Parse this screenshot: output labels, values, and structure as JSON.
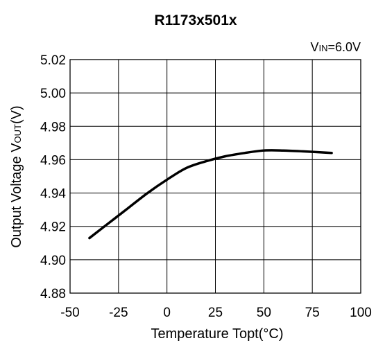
{
  "chart_data": {
    "type": "line",
    "title": "R1173x501x",
    "condition": {
      "main": "V",
      "sub": "IN",
      "rest": "=6.0V"
    },
    "xlabel": "Temperature Topt(°C)",
    "ylabel": {
      "main": "Output Voltage V",
      "sub": "OUT",
      "rest": "(V)"
    },
    "xlim": [
      -50,
      100
    ],
    "ylim": [
      4.88,
      5.02
    ],
    "x_ticks": [
      -50,
      -25,
      0,
      25,
      50,
      75,
      100
    ],
    "y_ticks": [
      4.88,
      4.9,
      4.92,
      4.94,
      4.96,
      4.98,
      5.0,
      5.02
    ],
    "x_tick_labels": [
      "-50",
      "-25",
      "0",
      "25",
      "50",
      "75",
      "100"
    ],
    "y_tick_labels": [
      "4.88",
      "4.90",
      "4.92",
      "4.94",
      "4.96",
      "4.98",
      "5.00",
      "5.02"
    ],
    "grid": true,
    "series": [
      {
        "color": "#000000",
        "x": [
          -40,
          -30,
          -20,
          -10,
          0,
          10,
          20,
          30,
          40,
          50,
          60,
          70,
          85
        ],
        "y": [
          4.913,
          4.922,
          4.931,
          4.94,
          4.948,
          4.955,
          4.959,
          4.962,
          4.964,
          4.9655,
          4.9655,
          4.965,
          4.964
        ]
      }
    ]
  }
}
